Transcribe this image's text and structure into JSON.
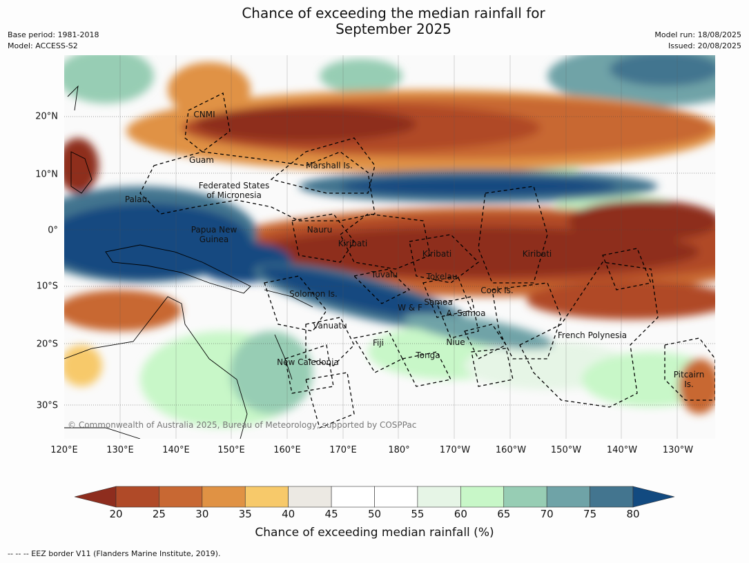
{
  "header": {
    "title_line1": "Chance of exceeding the median rainfall for",
    "title_line2": "September 2025",
    "base_period": "Base period: 1981-2018",
    "model": "Model: ACCESS-S2",
    "model_run": "Model run: 18/08/2025",
    "issued": "Issued: 20/08/2025"
  },
  "map": {
    "longitude_labels": [
      "120°E",
      "130°E",
      "140°E",
      "150°E",
      "160°E",
      "170°E",
      "180°",
      "170°W",
      "160°W",
      "150°W",
      "140°W",
      "130°W"
    ],
    "latitude_labels": [
      "20°N",
      "10°N",
      "0°",
      "10°S",
      "20°S",
      "30°S"
    ],
    "copyright": "© Commonwealth of Australia 2025, Bureau of Meteorology, supported by COSPPac",
    "places": [
      "CNMI",
      "Guam",
      "Marshall Is.",
      "Federated States\nof Micronesia",
      "Palau",
      "Papua New\nGuinea",
      "Nauru",
      "Kiribati",
      "Kiribati",
      "Kiribati",
      "Tuvalu",
      "Tokelau",
      "Cook Is.",
      "Solomon Is.",
      "Samoa",
      "W & F",
      "A. Samoa",
      "Vanuatu",
      "Fiji",
      "Niue",
      "Tonga",
      "French Polynesia",
      "New Caledonia",
      "Pitcairn\nIs."
    ]
  },
  "colorbar": {
    "ticks": [
      "20",
      "25",
      "30",
      "35",
      "40",
      "45",
      "50",
      "55",
      "60",
      "65",
      "70",
      "75",
      "80"
    ],
    "label": "Chance of exceeding median rainfall (%)",
    "colors": [
      "#8e2d1e",
      "#b04a28",
      "#c86833",
      "#e09244",
      "#f7c96a",
      "#ece9e3",
      "#ffffff",
      "#ffffff",
      "#e6f5e6",
      "#c8f7c8",
      "#97cdb4",
      "#6fa3a7",
      "#43758f",
      "#124a80"
    ]
  },
  "footer": {
    "eez_note": "--  --  -- EEZ border V11 (Flanders Marine Institute, 2019)."
  }
}
